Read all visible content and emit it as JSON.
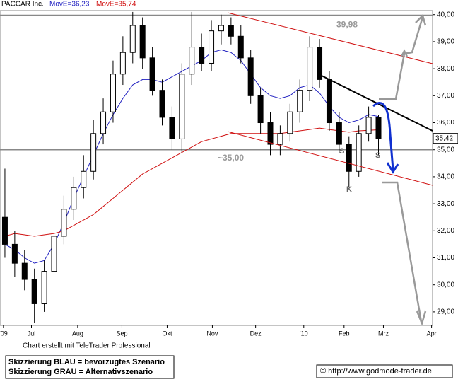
{
  "chart_data": {
    "type": "candlestick",
    "title": "PACCAR Inc.",
    "xlim": [
      0,
      44
    ],
    "xticks": [
      {
        "value": 0.35,
        "label": "'09"
      },
      {
        "value": 3.2,
        "label": "Jul"
      },
      {
        "value": 7.9,
        "label": "Aug"
      },
      {
        "value": 12.4,
        "label": "Sep"
      },
      {
        "value": 17.0,
        "label": "Okt"
      },
      {
        "value": 21.6,
        "label": "Nov"
      },
      {
        "value": 26.0,
        "label": "Dez"
      },
      {
        "value": 30.9,
        "label": "'10"
      },
      {
        "value": 35.0,
        "label": "Feb"
      },
      {
        "value": 39.0,
        "label": "Mrz"
      },
      {
        "value": 43.9,
        "label": "Apr"
      }
    ],
    "ylim": [
      28.5,
      40.15
    ],
    "yticks": [
      {
        "value": 29,
        "label": "29,00"
      },
      {
        "value": 30,
        "label": "30,00"
      },
      {
        "value": 31,
        "label": "31,00"
      },
      {
        "value": 32,
        "label": "32,00"
      },
      {
        "value": 33,
        "label": "33,00"
      },
      {
        "value": 34,
        "label": "34,00"
      },
      {
        "value": 35,
        "label": "35,00"
      },
      {
        "value": 36,
        "label": "36,00"
      },
      {
        "value": 37,
        "label": "37,00"
      },
      {
        "value": 38,
        "label": "38,00"
      },
      {
        "value": 39,
        "label": "39,00"
      },
      {
        "value": 40,
        "label": "40,00"
      }
    ],
    "x": [
      0.5,
      1.5,
      2.5,
      3.5,
      4.5,
      5.5,
      6.5,
      7.5,
      8.5,
      9.5,
      10.5,
      11.5,
      12.5,
      13.5,
      14.5,
      15.5,
      16.5,
      17.5,
      18.5,
      19.5,
      20.5,
      21.5,
      22.5,
      23.5,
      24.5,
      25.5,
      26.5,
      27.5,
      28.5,
      29.5,
      30.5,
      31.5,
      32.5,
      33.5,
      34.5,
      35.5,
      36.5,
      37.5,
      38.5
    ],
    "open": [
      32.5,
      31.5,
      30.8,
      30.2,
      29.3,
      30.5,
      31.8,
      32.8,
      33.6,
      34.2,
      35.6,
      36.4,
      37.8,
      38.6,
      39.6,
      38.4,
      37.2,
      36.2,
      35.4,
      37.8,
      38.8,
      38.2,
      39.4,
      39.6,
      39.2,
      38.4,
      37.0,
      36.0,
      35.2,
      35.6,
      36.4,
      37.2,
      38.8,
      37.6,
      36.0,
      35.2,
      34.2,
      35.6,
      36.2
    ],
    "high": [
      34.3,
      32.0,
      31.3,
      30.6,
      30.9,
      32.2,
      33.3,
      34.0,
      34.8,
      36.1,
      36.9,
      38.3,
      39.2,
      40.1,
      39.9,
      38.8,
      37.6,
      36.6,
      38.2,
      40.1,
      39.3,
      39.8,
      40.0,
      39.9,
      39.6,
      38.7,
      37.3,
      36.4,
      35.9,
      36.7,
      37.6,
      39.2,
      39.1,
      37.9,
      36.4,
      35.5,
      35.9,
      36.6,
      36.3
    ],
    "low": [
      31.0,
      30.3,
      29.8,
      28.6,
      29.0,
      30.2,
      31.5,
      32.4,
      33.2,
      33.9,
      35.2,
      36.0,
      37.4,
      38.2,
      38.0,
      37.0,
      35.9,
      35.0,
      34.9,
      37.4,
      37.9,
      37.9,
      38.9,
      38.9,
      38.2,
      36.7,
      35.6,
      34.8,
      34.8,
      35.3,
      36.0,
      36.8,
      37.3,
      35.7,
      34.9,
      33.6,
      34.0,
      35.3,
      34.8
    ],
    "close": [
      31.5,
      30.8,
      30.2,
      29.3,
      30.5,
      31.8,
      32.8,
      33.6,
      34.2,
      35.6,
      36.4,
      37.8,
      38.6,
      39.6,
      38.4,
      37.2,
      36.2,
      35.4,
      37.8,
      38.8,
      38.2,
      39.4,
      39.6,
      39.2,
      38.4,
      37.0,
      36.0,
      35.2,
      35.6,
      36.4,
      37.2,
      38.8,
      37.6,
      36.0,
      35.2,
      34.2,
      35.6,
      36.2,
      35.42
    ],
    "series": [
      {
        "name": "MovE=36,23",
        "color": "#2020c0",
        "values": [
          31.5,
          31.3,
          31.0,
          30.8,
          30.9,
          31.5,
          32.3,
          33.2,
          34.0,
          34.8,
          35.6,
          36.3,
          36.9,
          37.4,
          37.6,
          37.6,
          37.5,
          37.7,
          37.9,
          38.1,
          38.3,
          38.6,
          38.7,
          38.6,
          38.3,
          37.8,
          37.3,
          37.0,
          36.9,
          37.0,
          37.3,
          37.4,
          37.1,
          36.6,
          36.2,
          36.0,
          36.1,
          36.3,
          36.23
        ]
      },
      {
        "name": "MovE=35,74",
        "color": "#d01010",
        "values": [
          31.8,
          31.9,
          31.85,
          31.8,
          31.85,
          31.9,
          32.0,
          32.2,
          32.4,
          32.6,
          32.9,
          33.2,
          33.5,
          33.8,
          34.1,
          34.3,
          34.5,
          34.7,
          34.9,
          35.1,
          35.3,
          35.4,
          35.5,
          35.6,
          35.6,
          35.6,
          35.6,
          35.6,
          35.6,
          35.65,
          35.7,
          35.75,
          35.8,
          35.75,
          35.7,
          35.65,
          35.7,
          35.72,
          35.74
        ]
      }
    ],
    "hlines": [
      {
        "value": 39.98,
        "label": "39,98"
      },
      {
        "value": 35.0,
        "label": "~35,00"
      }
    ],
    "last": {
      "value": 35.42,
      "label": "35,42"
    },
    "annotations": [
      "S",
      "K",
      "S"
    ],
    "credit": "Chart erstellt mit TeleTrader Professional",
    "legend_notes": [
      "Skizzierung BLAU = bevorzugtes Szenario",
      "Skizzierung GRAU = Alternativszenario"
    ],
    "source": "© http://www.godmode-trader.de"
  }
}
